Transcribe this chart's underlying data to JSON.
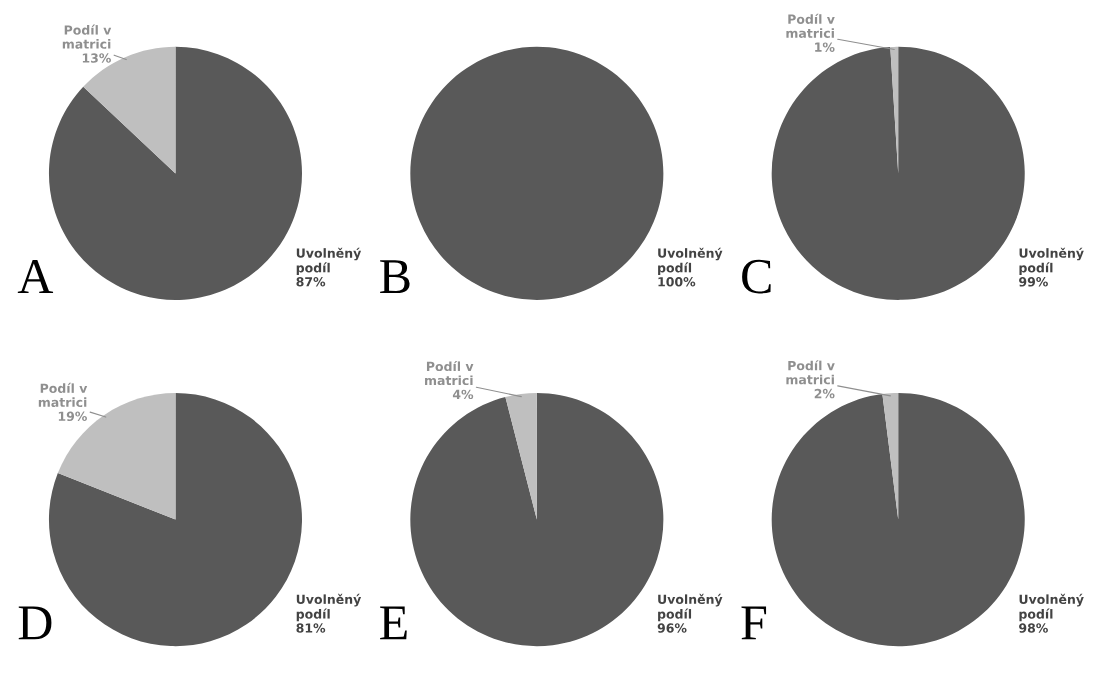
{
  "chart_data": [
    {
      "type": "pie",
      "title": "A",
      "categories": [
        "Uvolněný podíl",
        "Podíl v matrici"
      ],
      "values": [
        87,
        13
      ],
      "colors": [
        "#595959",
        "#bfbfbf"
      ],
      "value_labels": [
        "87%",
        "13%"
      ]
    },
    {
      "type": "pie",
      "title": "B",
      "categories": [
        "Uvolněný podíl"
      ],
      "values": [
        100
      ],
      "colors": [
        "#595959"
      ],
      "value_labels": [
        "100%"
      ]
    },
    {
      "type": "pie",
      "title": "C",
      "categories": [
        "Uvolněný podíl",
        "Podíl v matrici"
      ],
      "values": [
        99,
        1
      ],
      "colors": [
        "#595959",
        "#bfbfbf"
      ],
      "value_labels": [
        "99%",
        "1%"
      ]
    },
    {
      "type": "pie",
      "title": "D",
      "categories": [
        "Uvolněný podíl",
        "Podíl v matrici"
      ],
      "values": [
        81,
        19
      ],
      "colors": [
        "#595959",
        "#bfbfbf"
      ],
      "value_labels": [
        "81%",
        "19%"
      ]
    },
    {
      "type": "pie",
      "title": "E",
      "categories": [
        "Uvolněný podíl",
        "Podíl v matrici"
      ],
      "values": [
        96,
        4
      ],
      "colors": [
        "#595959",
        "#bfbfbf"
      ],
      "value_labels": [
        "96%",
        "4%"
      ]
    },
    {
      "type": "pie",
      "title": "F",
      "categories": [
        "Uvolněný podíl",
        "Podíl v matrici"
      ],
      "values": [
        98,
        2
      ],
      "colors": [
        "#595959",
        "#bfbfbf"
      ],
      "value_labels": [
        "98%",
        "2%"
      ]
    }
  ]
}
